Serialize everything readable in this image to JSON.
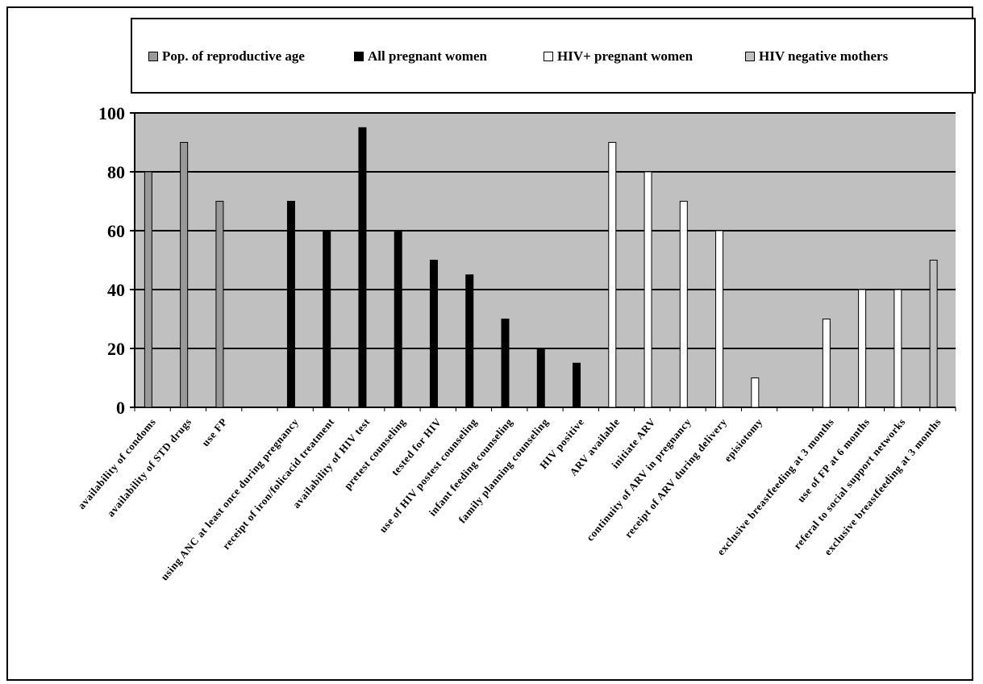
{
  "chart_data": {
    "type": "bar",
    "ylim": [
      0,
      100
    ],
    "yticks": [
      0,
      20,
      40,
      60,
      80,
      100
    ],
    "grid": true,
    "legend_position": "top",
    "plot_background": "#c0c0c0",
    "series": [
      {
        "name": "Pop. of reproductive age",
        "color": "#999999"
      },
      {
        "name": "All pregnant women",
        "color": "#000000"
      },
      {
        "name": "HIV+ pregnant women",
        "color": "#ffffff"
      },
      {
        "name": "HIV negative mothers",
        "color": "#c0c0c0"
      }
    ],
    "categories": [
      {
        "label": "availability of condoms",
        "value": 80,
        "series": 0
      },
      {
        "label": "availability of STD drugs",
        "value": 90,
        "series": 0
      },
      {
        "label": "use FP",
        "value": 70,
        "series": 0
      },
      {
        "label": "",
        "value": null,
        "series": null
      },
      {
        "label": "using ANC at least once during pregnancy",
        "value": 70,
        "series": 1
      },
      {
        "label": "receipt of iron/folicacid treatment",
        "value": 60,
        "series": 1
      },
      {
        "label": "availability of HIV test",
        "value": 95,
        "series": 1
      },
      {
        "label": "pretest counseling",
        "value": 60,
        "series": 1
      },
      {
        "label": "tested for HIV",
        "value": 50,
        "series": 1
      },
      {
        "label": "use of HIV postest counseling",
        "value": 45,
        "series": 1
      },
      {
        "label": "infant feeding counseling",
        "value": 30,
        "series": 1
      },
      {
        "label": "family planning counseling",
        "value": 20,
        "series": 1
      },
      {
        "label": "HIV positive",
        "value": 15,
        "series": 1
      },
      {
        "label": "ARV available",
        "value": 90,
        "series": 2
      },
      {
        "label": "initiate ARV",
        "value": 80,
        "series": 2
      },
      {
        "label": "continuity of ARV in pregnancy",
        "value": 70,
        "series": 2
      },
      {
        "label": "receipt of ARV during delivery",
        "value": 60,
        "series": 2
      },
      {
        "label": "episiotomy",
        "value": 10,
        "series": 2
      },
      {
        "label": "",
        "value": null,
        "series": null
      },
      {
        "label": "exclusive breastfeeding at 3 months",
        "value": 30,
        "series": 2
      },
      {
        "label": "use of FP at 6 months",
        "value": 40,
        "series": 2
      },
      {
        "label": "referal to social support networks",
        "value": 40,
        "series": 2
      },
      {
        "label": "exclusive breastfeeding at 3 months",
        "value": 50,
        "series": 3
      }
    ]
  }
}
